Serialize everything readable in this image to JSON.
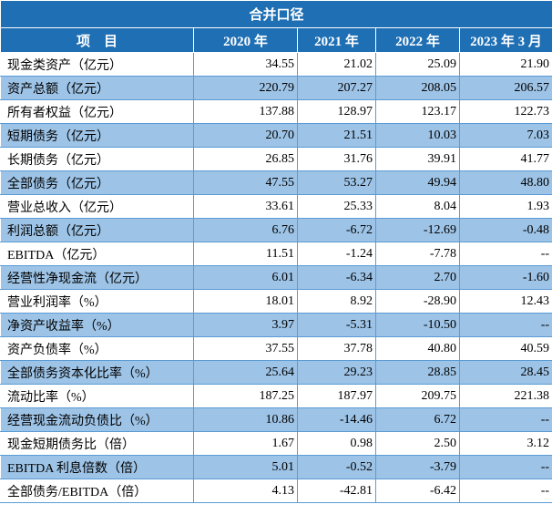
{
  "table": {
    "title": "合并口径",
    "headers": [
      "项　目",
      "2020 年",
      "2021 年",
      "2022 年",
      "2023 年 3 月"
    ],
    "rows": [
      {
        "label": "现金类资产（亿元）",
        "values": [
          "34.55",
          "21.02",
          "25.09",
          "21.90"
        ]
      },
      {
        "label": "资产总额（亿元）",
        "values": [
          "220.79",
          "207.27",
          "208.05",
          "206.57"
        ]
      },
      {
        "label": "所有者权益（亿元）",
        "values": [
          "137.88",
          "128.97",
          "123.17",
          "122.73"
        ]
      },
      {
        "label": "短期债务（亿元）",
        "values": [
          "20.70",
          "21.51",
          "10.03",
          "7.03"
        ]
      },
      {
        "label": "长期债务（亿元）",
        "values": [
          "26.85",
          "31.76",
          "39.91",
          "41.77"
        ]
      },
      {
        "label": "全部债务（亿元）",
        "values": [
          "47.55",
          "53.27",
          "49.94",
          "48.80"
        ]
      },
      {
        "label": "营业总收入（亿元）",
        "values": [
          "33.61",
          "25.33",
          "8.04",
          "1.93"
        ]
      },
      {
        "label": "利润总额（亿元）",
        "values": [
          "6.76",
          "-6.72",
          "-12.69",
          "-0.48"
        ]
      },
      {
        "label": "EBITDA（亿元）",
        "values": [
          "11.51",
          "-1.24",
          "-7.78",
          "--"
        ]
      },
      {
        "label": "经营性净现金流（亿元）",
        "values": [
          "6.01",
          "-6.34",
          "2.70",
          "-1.60"
        ]
      },
      {
        "label": "营业利润率（%）",
        "values": [
          "18.01",
          "8.92",
          "-28.90",
          "12.43"
        ]
      },
      {
        "label": "净资产收益率（%）",
        "values": [
          "3.97",
          "-5.31",
          "-10.50",
          "--"
        ]
      },
      {
        "label": "资产负债率（%）",
        "values": [
          "37.55",
          "37.78",
          "40.80",
          "40.59"
        ]
      },
      {
        "label": "全部债务资本化比率（%）",
        "values": [
          "25.64",
          "29.23",
          "28.85",
          "28.45"
        ]
      },
      {
        "label": "流动比率（%）",
        "values": [
          "187.25",
          "187.97",
          "209.75",
          "221.38"
        ]
      },
      {
        "label": "经营现金流动负债比（%）",
        "values": [
          "10.86",
          "-14.46",
          "6.72",
          "--"
        ]
      },
      {
        "label": "现金短期债务比（倍）",
        "values": [
          "1.67",
          "0.98",
          "2.50",
          "3.12"
        ]
      },
      {
        "label": "EBITDA 利息倍数（倍）",
        "values": [
          "5.01",
          "-0.52",
          "-3.79",
          "--"
        ]
      },
      {
        "label": "全部债务/EBITDA（倍）",
        "values": [
          "4.13",
          "-42.81",
          "-6.42",
          "--"
        ]
      }
    ]
  }
}
